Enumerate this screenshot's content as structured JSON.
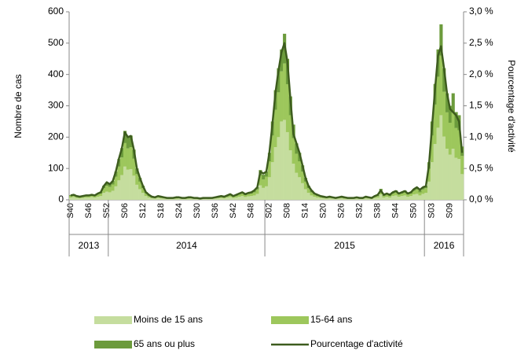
{
  "chart_data": {
    "type": "bar-line",
    "y_label": "Nombre de cas",
    "y2_label": "Pourcentage d'activité",
    "categories": [
      "S40",
      null,
      null,
      null,
      null,
      null,
      "S46",
      null,
      null,
      null,
      null,
      null,
      "S52",
      null,
      null,
      null,
      null,
      null,
      "S06",
      null,
      null,
      null,
      null,
      null,
      "S12",
      null,
      null,
      null,
      null,
      null,
      "S18",
      null,
      null,
      null,
      null,
      null,
      "S24",
      null,
      null,
      null,
      null,
      null,
      "S30",
      null,
      null,
      null,
      null,
      null,
      "S36",
      null,
      null,
      null,
      null,
      null,
      "S42",
      null,
      null,
      null,
      null,
      null,
      "S48",
      null,
      null,
      null,
      null,
      null,
      "S02",
      null,
      null,
      null,
      null,
      null,
      "S08",
      null,
      null,
      null,
      null,
      null,
      "S14",
      null,
      null,
      null,
      null,
      null,
      "S20",
      null,
      null,
      null,
      null,
      null,
      "S26",
      null,
      null,
      null,
      null,
      null,
      "S32",
      null,
      null,
      null,
      null,
      null,
      "S38",
      null,
      null,
      null,
      null,
      null,
      "S44",
      null,
      null,
      null,
      null,
      null,
      "S50",
      null,
      null,
      null,
      null,
      null,
      "S03",
      null,
      null,
      null,
      null,
      null,
      "S09",
      null,
      null,
      null,
      null
    ],
    "years": [
      {
        "label": "2013",
        "span": 13
      },
      {
        "label": "2014",
        "span": 52
      },
      {
        "label": "2015",
        "span": 53
      },
      {
        "label": "2016",
        "span": 13
      }
    ],
    "series": [
      {
        "name": "Moins de 15 ans",
        "color": "#c5dd9e",
        "values": [
          7,
          9,
          6,
          5,
          6,
          7,
          7,
          9,
          7,
          10,
          12,
          22,
          26,
          24,
          29,
          43,
          62,
          79,
          106,
          96,
          98,
          77,
          48,
          34,
          22,
          12,
          7,
          5,
          4,
          6,
          5,
          4,
          3,
          2,
          3,
          3,
          4,
          3,
          2,
          3,
          4,
          3,
          2,
          2,
          2,
          3,
          2,
          3,
          4,
          5,
          6,
          5,
          7,
          9,
          6,
          7,
          10,
          12,
          9,
          11,
          12,
          14,
          19,
          46,
          38,
          43,
          72,
          120,
          168,
          200,
          250,
          255,
          216,
          158,
          115,
          86,
          72,
          53,
          34,
          22,
          14,
          10,
          7,
          6,
          5,
          4,
          5,
          4,
          3,
          4,
          5,
          3,
          3,
          2,
          3,
          4,
          3,
          2,
          5,
          4,
          3,
          6,
          7,
          17,
          7,
          10,
          7,
          12,
          14,
          10,
          12,
          14,
          10,
          12,
          17,
          19,
          14,
          19,
          22,
          58,
          120,
          178,
          230,
          270,
          202,
          163,
          144,
          163,
          134,
          130,
          82
        ]
      },
      {
        "name": "15-64 ans",
        "color": "#9dc75c",
        "values": [
          5,
          6,
          4,
          3,
          4,
          5,
          5,
          6,
          5,
          7,
          8,
          15,
          19,
          17,
          20,
          31,
          44,
          56,
          75,
          68,
          70,
          54,
          34,
          24,
          15,
          9,
          5,
          3,
          3,
          4,
          3,
          3,
          2,
          2,
          2,
          2,
          3,
          2,
          2,
          2,
          3,
          2,
          2,
          1,
          2,
          2,
          2,
          2,
          3,
          3,
          4,
          3,
          5,
          6,
          4,
          5,
          7,
          8,
          6,
          7,
          8,
          10,
          14,
          32,
          27,
          31,
          51,
          85,
          119,
          143,
          160,
          180,
          153,
          112,
          82,
          61,
          51,
          37,
          24,
          15,
          10,
          7,
          5,
          4,
          3,
          3,
          3,
          3,
          2,
          3,
          3,
          2,
          2,
          2,
          2,
          3,
          2,
          2,
          3,
          3,
          2,
          4,
          5,
          12,
          5,
          7,
          5,
          8,
          10,
          7,
          8,
          10,
          7,
          8,
          12,
          14,
          10,
          14,
          15,
          41,
          85,
          126,
          163,
          190,
          143,
          116,
          102,
          116,
          95,
          92,
          58
        ]
      },
      {
        "name": "65 ans ou plus",
        "color": "#6c9b3c",
        "values": [
          3,
          3,
          2,
          2,
          2,
          2,
          3,
          3,
          3,
          3,
          5,
          8,
          10,
          9,
          11,
          16,
          24,
          30,
          39,
          36,
          37,
          29,
          18,
          12,
          8,
          4,
          3,
          2,
          1,
          2,
          2,
          1,
          1,
          1,
          1,
          2,
          1,
          1,
          1,
          2,
          1,
          1,
          1,
          1,
          1,
          1,
          1,
          1,
          1,
          2,
          2,
          2,
          3,
          3,
          2,
          3,
          3,
          5,
          3,
          4,
          5,
          6,
          7,
          17,
          15,
          16,
          27,
          45,
          63,
          77,
          70,
          95,
          81,
          60,
          43,
          33,
          27,
          20,
          12,
          8,
          6,
          3,
          3,
          2,
          2,
          1,
          2,
          1,
          1,
          1,
          2,
          2,
          1,
          1,
          1,
          1,
          1,
          1,
          2,
          1,
          1,
          2,
          3,
          6,
          3,
          3,
          3,
          5,
          6,
          3,
          5,
          6,
          3,
          5,
          6,
          7,
          6,
          7,
          8,
          21,
          45,
          66,
          87,
          100,
          75,
          61,
          54,
          61,
          51,
          48,
          30
        ]
      },
      {
        "name": "Pourcentage d'activité",
        "color": "#3d5c1e",
        "axis": "y2",
        "values": [
          0.07,
          0.08,
          0.06,
          0.05,
          0.06,
          0.07,
          0.07,
          0.08,
          0.07,
          0.1,
          0.12,
          0.22,
          0.28,
          0.25,
          0.3,
          0.45,
          0.65,
          0.82,
          1.08,
          1.0,
          1.02,
          0.8,
          0.5,
          0.35,
          0.22,
          0.12,
          0.08,
          0.05,
          0.04,
          0.06,
          0.05,
          0.04,
          0.03,
          0.03,
          0.03,
          0.04,
          0.04,
          0.03,
          0.03,
          0.04,
          0.04,
          0.03,
          0.03,
          0.02,
          0.03,
          0.03,
          0.03,
          0.03,
          0.04,
          0.05,
          0.06,
          0.05,
          0.07,
          0.09,
          0.06,
          0.08,
          0.1,
          0.12,
          0.09,
          0.11,
          0.12,
          0.15,
          0.2,
          0.45,
          0.42,
          0.45,
          0.75,
          1.2,
          1.7,
          2.05,
          2.35,
          2.5,
          2.2,
          1.6,
          1.05,
          0.9,
          0.75,
          0.55,
          0.35,
          0.22,
          0.15,
          0.1,
          0.08,
          0.06,
          0.05,
          0.04,
          0.05,
          0.04,
          0.03,
          0.04,
          0.05,
          0.04,
          0.03,
          0.03,
          0.03,
          0.04,
          0.03,
          0.03,
          0.05,
          0.04,
          0.03,
          0.06,
          0.08,
          0.15,
          0.08,
          0.1,
          0.08,
          0.12,
          0.14,
          0.1,
          0.12,
          0.14,
          0.1,
          0.12,
          0.17,
          0.2,
          0.16,
          0.2,
          0.22,
          0.55,
          1.15,
          1.75,
          2.3,
          2.45,
          2.1,
          1.7,
          1.45,
          1.4,
          1.35,
          1.25,
          0.75
        ]
      }
    ],
    "ylim": [
      0,
      600
    ],
    "yticks": [
      0,
      100,
      200,
      300,
      400,
      500,
      600
    ],
    "y2lim": [
      0,
      3
    ],
    "y2ticks": [
      {
        "value": 0,
        "label": "0,0 %"
      },
      {
        "value": 0.5,
        "label": "0,5 %"
      },
      {
        "value": 1,
        "label": "1,0 %"
      },
      {
        "value": 1.5,
        "label": "1,5 %"
      },
      {
        "value": 2,
        "label": "2,0 %"
      },
      {
        "value": 2.5,
        "label": "2,5 %"
      },
      {
        "value": 3,
        "label": "3,0 %"
      }
    ]
  }
}
